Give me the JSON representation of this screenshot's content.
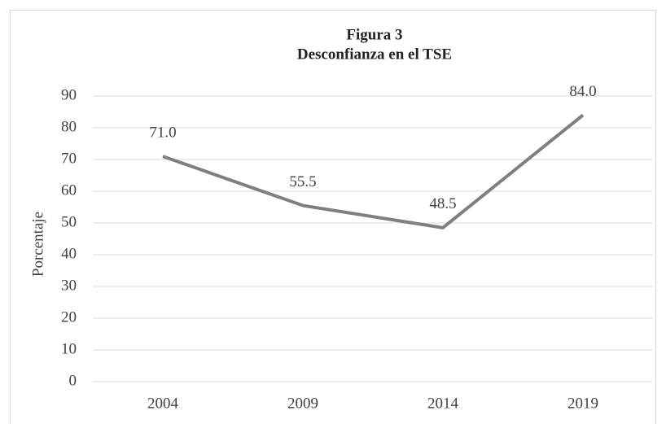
{
  "chart_data": {
    "type": "line",
    "title": "Figura 3",
    "subtitle": "Desconfianza en el TSE",
    "y_label": "Porcentaje",
    "categories": [
      "2004",
      "2009",
      "2014",
      "2019"
    ],
    "series": [
      {
        "name": "Desconfianza en el TSE",
        "color": "#7f7f7f",
        "values": [
          71,
          55.5,
          48.5,
          84
        ],
        "value_labels": [
          "71.0",
          "55.5",
          "48.5",
          "84.0"
        ]
      }
    ],
    "ylim": [
      0,
      90
    ],
    "yticks": [
      0,
      10,
      20,
      30,
      40,
      50,
      60,
      70,
      80,
      90
    ],
    "grid": true
  }
}
